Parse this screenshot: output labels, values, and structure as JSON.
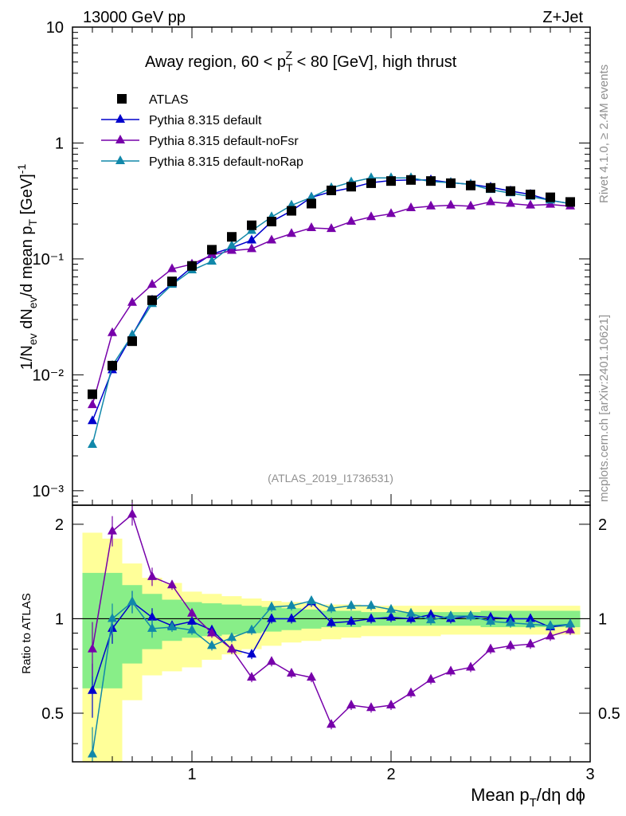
{
  "header": {
    "left": "13000 GeV pp",
    "right": "Z+Jet"
  },
  "side_text": {
    "rivet": "Rivet 4.1.0, ≥ 2.4M events",
    "mcplots": "mcplots.cern.ch [arXiv:2401.10621]"
  },
  "colors": {
    "atlas": "#000000",
    "default": "#0000cc",
    "noFsr": "#7700aa",
    "noRap": "#1188aa",
    "band_inner": "#88ee88",
    "band_outer": "#ffff99"
  },
  "chart_data": {
    "type": "line",
    "title": "Away region, 60 < p_T^Z < 80 [GeV], high thrust",
    "title_parts": {
      "a": "Away region, 60 < p",
      "sup": "Z",
      "sub": "T",
      "b": " < 80 [GeV], high thrust"
    },
    "analysis_label": "(ATLAS_2019_I1736531)",
    "ylabel": "1/N_ev dN_ev/d mean p_T [GeV]^-1",
    "ratio_ylabel": "Ratio to ATLAS",
    "xlabel": "Mean p_T/dη dφ",
    "xlim": [
      0.4,
      3.0
    ],
    "ylim": [
      0.00075,
      10
    ],
    "ratio_ylim": [
      0.35,
      2.3
    ],
    "x_ticks": [
      "1",
      "2",
      "3"
    ],
    "y_ticks": [
      "10⁻³",
      "10⁻²",
      "10⁻¹",
      "1",
      "10"
    ],
    "ratio_ticks": [
      "0.5",
      "1",
      "2"
    ],
    "x": [
      0.5,
      0.6,
      0.7,
      0.8,
      0.9,
      1.0,
      1.1,
      1.2,
      1.3,
      1.4,
      1.5,
      1.6,
      1.7,
      1.8,
      1.9,
      2.0,
      2.1,
      2.2,
      2.3,
      2.4,
      2.5,
      2.6,
      2.7,
      2.8,
      2.9
    ],
    "legend": [
      "ATLAS",
      "Pythia 8.315 default",
      "Pythia 8.315 default-noFsr",
      "Pythia 8.315 default-noRap"
    ],
    "data": {
      "name": "ATLAS",
      "values": [
        0.0068,
        0.012,
        0.0195,
        0.044,
        0.064,
        0.087,
        0.12,
        0.155,
        0.195,
        0.21,
        0.26,
        0.3,
        0.39,
        0.42,
        0.45,
        0.47,
        0.48,
        0.47,
        0.45,
        0.43,
        0.41,
        0.385,
        0.36,
        0.34,
        0.31
      ]
    },
    "series": [
      {
        "name": "Pythia 8.315 default",
        "color_key": "default",
        "values": [
          0.004,
          0.011,
          0.022,
          0.044,
          0.061,
          0.085,
          0.11,
          0.125,
          0.145,
          0.21,
          0.26,
          0.34,
          0.38,
          0.41,
          0.455,
          0.475,
          0.48,
          0.48,
          0.455,
          0.44,
          0.415,
          0.385,
          0.36,
          0.32,
          0.3
        ]
      },
      {
        "name": "Pythia 8.315 default-noFsr",
        "color_key": "noFsr",
        "values": [
          0.0055,
          0.023,
          0.042,
          0.06,
          0.082,
          0.09,
          0.108,
          0.118,
          0.122,
          0.145,
          0.165,
          0.185,
          0.182,
          0.21,
          0.23,
          0.245,
          0.275,
          0.285,
          0.29,
          0.285,
          0.31,
          0.3,
          0.29,
          0.295,
          0.285
        ]
      },
      {
        "name": "Pythia 8.315 default-noRap",
        "color_key": "noRap",
        "values": [
          0.0025,
          0.012,
          0.022,
          0.041,
          0.06,
          0.08,
          0.095,
          0.13,
          0.175,
          0.23,
          0.29,
          0.34,
          0.41,
          0.46,
          0.5,
          0.5,
          0.5,
          0.465,
          0.455,
          0.44,
          0.395,
          0.37,
          0.345,
          0.32,
          0.3
        ]
      }
    ],
    "ratio": {
      "band_inner": [
        [
          0.6,
          1.4
        ],
        [
          0.6,
          1.4
        ],
        [
          0.72,
          1.28
        ],
        [
          0.8,
          1.2
        ],
        [
          0.85,
          1.15
        ],
        [
          0.87,
          1.13
        ],
        [
          0.88,
          1.12
        ],
        [
          0.89,
          1.11
        ],
        [
          0.9,
          1.1
        ],
        [
          0.91,
          1.09
        ],
        [
          0.92,
          1.08
        ],
        [
          0.93,
          1.07
        ],
        [
          0.94,
          1.06
        ],
        [
          0.94,
          1.06
        ],
        [
          0.95,
          1.05
        ],
        [
          0.95,
          1.05
        ],
        [
          0.95,
          1.05
        ],
        [
          0.95,
          1.05
        ],
        [
          0.95,
          1.05
        ],
        [
          0.95,
          1.05
        ],
        [
          0.94,
          1.06
        ],
        [
          0.94,
          1.06
        ],
        [
          0.94,
          1.06
        ],
        [
          0.94,
          1.06
        ],
        [
          0.94,
          1.06
        ]
      ],
      "band_outer": [
        [
          0.35,
          1.88
        ],
        [
          0.35,
          1.8
        ],
        [
          0.55,
          1.5
        ],
        [
          0.66,
          1.35
        ],
        [
          0.68,
          1.3
        ],
        [
          0.7,
          1.22
        ],
        [
          0.74,
          1.2
        ],
        [
          0.77,
          1.18
        ],
        [
          0.8,
          1.16
        ],
        [
          0.82,
          1.14
        ],
        [
          0.84,
          1.13
        ],
        [
          0.85,
          1.12
        ],
        [
          0.86,
          1.11
        ],
        [
          0.87,
          1.11
        ],
        [
          0.88,
          1.1
        ],
        [
          0.88,
          1.1
        ],
        [
          0.88,
          1.1
        ],
        [
          0.88,
          1.1
        ],
        [
          0.89,
          1.1
        ],
        [
          0.89,
          1.1
        ],
        [
          0.89,
          1.1
        ],
        [
          0.89,
          1.1
        ],
        [
          0.89,
          1.1
        ],
        [
          0.89,
          1.1
        ],
        [
          0.89,
          1.1
        ]
      ],
      "series": [
        {
          "name": "Pythia 8.315 default",
          "color_key": "default",
          "values": [
            0.59,
            0.93,
            1.13,
            1.01,
            0.95,
            0.98,
            0.92,
            0.8,
            0.77,
            1.0,
            1.0,
            1.13,
            0.97,
            0.98,
            1.0,
            1.01,
            1.0,
            1.03,
            1.0,
            1.02,
            1.01,
            1.0,
            1.0,
            0.94,
            0.96
          ]
        },
        {
          "name": "Pythia 8.315 default-noFsr",
          "color_key": "noFsr",
          "values": [
            0.8,
            1.9,
            2.15,
            1.36,
            1.28,
            1.04,
            0.9,
            0.8,
            0.65,
            0.73,
            0.67,
            0.65,
            0.46,
            0.53,
            0.52,
            0.53,
            0.58,
            0.64,
            0.68,
            0.7,
            0.8,
            0.82,
            0.83,
            0.88,
            0.92
          ]
        },
        {
          "name": "Pythia 8.315 default-noRap",
          "color_key": "noRap",
          "values": [
            0.37,
            1.0,
            1.13,
            0.93,
            0.94,
            0.92,
            0.82,
            0.87,
            0.92,
            1.09,
            1.1,
            1.14,
            1.08,
            1.1,
            1.1,
            1.07,
            1.04,
            0.99,
            1.02,
            1.02,
            0.98,
            0.97,
            0.96,
            0.95,
            0.96
          ]
        }
      ]
    }
  }
}
